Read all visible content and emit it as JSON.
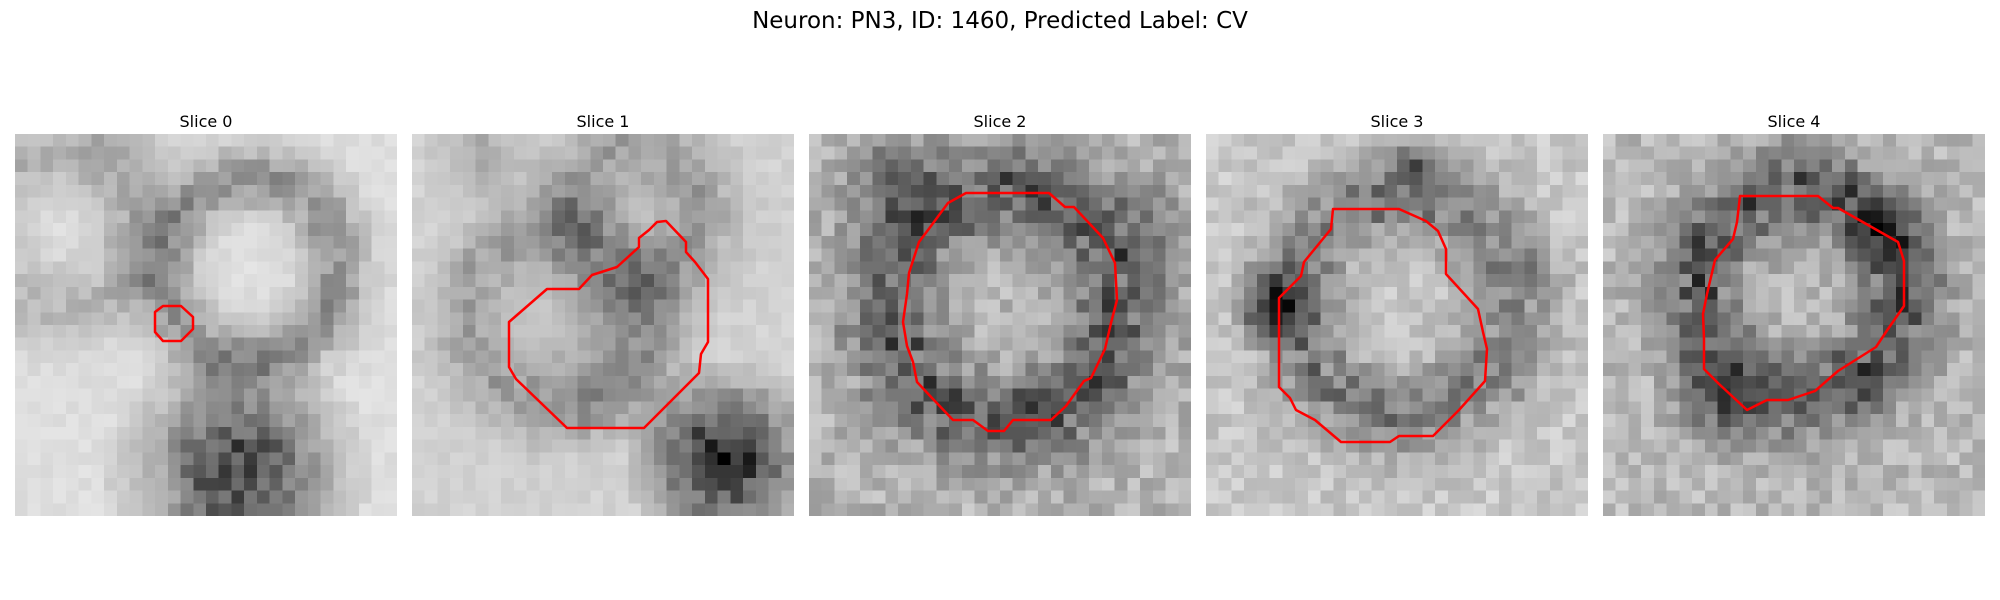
{
  "figure": {
    "title": "Neuron: PN3, ID: 1460, Predicted Label: CV"
  },
  "slices": [
    {
      "title": "Slice 0"
    },
    {
      "title": "Slice 1"
    },
    {
      "title": "Slice 2"
    },
    {
      "title": "Slice 3"
    },
    {
      "title": "Slice 4"
    }
  ],
  "colors": {
    "contour": "#ff0000",
    "colormap": "grayscale"
  }
}
